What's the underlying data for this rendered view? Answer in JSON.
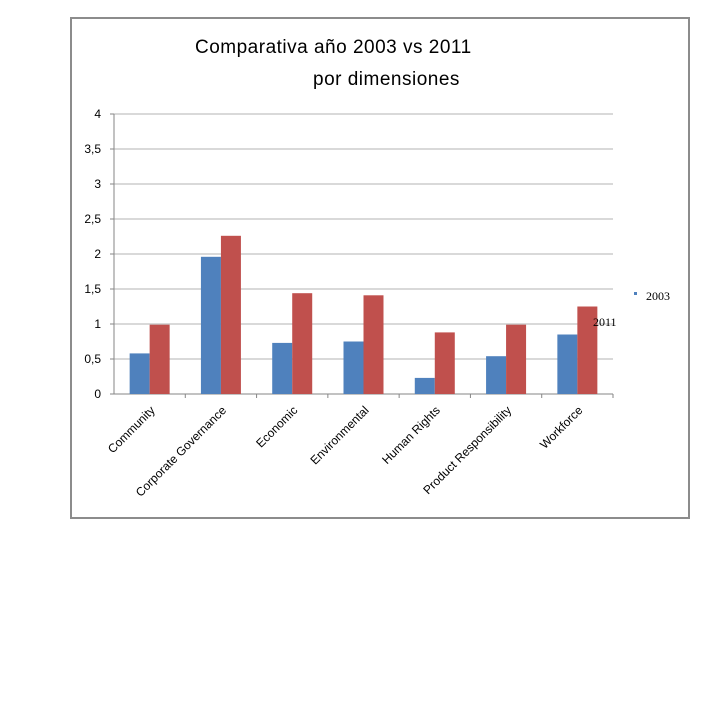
{
  "chart_data": {
    "type": "bar",
    "title_lines": [
      "Comparativa  año 2003 vs 2011",
      "por dimensiones"
    ],
    "categories": [
      "Community",
      "Corporate Governance",
      "Economic",
      "Environmental",
      "Human Rights",
      "Product Responsibility",
      "Workforce"
    ],
    "series": [
      {
        "name": "2003",
        "color": "#4F81BD",
        "values": [
          0.58,
          1.96,
          0.73,
          0.75,
          0.23,
          0.54,
          0.85
        ]
      },
      {
        "name": "2011",
        "color": "#C0504D",
        "values": [
          0.99,
          2.26,
          1.44,
          1.41,
          0.88,
          0.99,
          1.25
        ]
      }
    ],
    "yticks": [
      "0",
      "0,5",
      "1",
      "1,5",
      "2",
      "2,5",
      "3",
      "3,5",
      "4"
    ],
    "ylim": [
      0,
      4
    ],
    "xlabel": "",
    "ylabel": "",
    "grid": true,
    "legend_position": "right"
  }
}
